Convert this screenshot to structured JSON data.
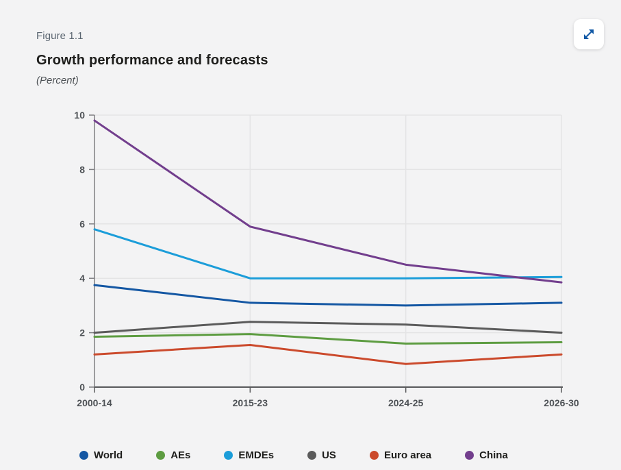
{
  "figure_label": "Figure 1.1",
  "title": "Growth performance and forecasts",
  "subtitle": "(Percent)",
  "expand_button": {
    "icon": "expand-arrows-icon",
    "color": "#1058a5"
  },
  "colors": {
    "background": "#f3f3f4",
    "grid": "#e4e4e5",
    "y_axis": "#7f7f82",
    "x_axis": "#58595b",
    "tick_label": "#4e5256",
    "title_text": "#1d1d1b",
    "figure_label_text": "#5a6570"
  },
  "chart_data": {
    "type": "line",
    "title": "Growth performance and forecasts",
    "subtitle": "(Percent)",
    "categories": [
      "2000-14",
      "2015-23",
      "2024-25",
      "2026-30"
    ],
    "series": [
      {
        "name": "World",
        "color": "#1457a3",
        "values": [
          3.75,
          3.1,
          3.0,
          3.1
        ]
      },
      {
        "name": "AEs",
        "color": "#5d9c41",
        "values": [
          1.85,
          1.95,
          1.6,
          1.65
        ]
      },
      {
        "name": "EMDEs",
        "color": "#1b9dd9",
        "values": [
          5.8,
          4.0,
          4.0,
          4.05
        ]
      },
      {
        "name": "US",
        "color": "#5b5b5b",
        "values": [
          2.0,
          2.4,
          2.3,
          2.0
        ]
      },
      {
        "name": "Euro area",
        "color": "#cb4a2c",
        "values": [
          1.2,
          1.55,
          0.85,
          1.2
        ]
      },
      {
        "name": "China",
        "color": "#723e8d",
        "values": [
          9.8,
          5.9,
          4.5,
          3.85
        ]
      }
    ],
    "ylim": [
      0,
      10
    ],
    "ytick_step": 2,
    "yticks": [
      0,
      2,
      4,
      6,
      8,
      10
    ],
    "grid": true,
    "legend_position": "bottom"
  }
}
